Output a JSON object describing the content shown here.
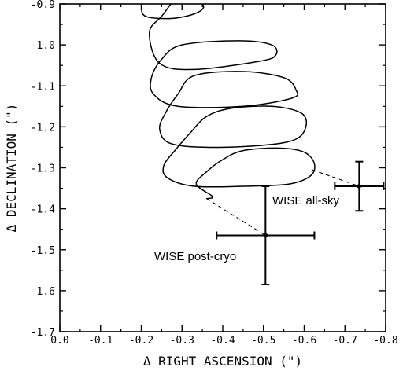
{
  "chart_data": {
    "type": "scatter",
    "xlabel": "Δ RIGHT ASCENSION (\")",
    "ylabel": "Δ DECLINATION (\")",
    "xlim": [
      0.0,
      -0.8
    ],
    "ylim": [
      -1.7,
      -0.9
    ],
    "x_ticks": [
      "0.0",
      "-0.1",
      "-0.2",
      "-0.3",
      "-0.4",
      "-0.5",
      "-0.6",
      "-0.7",
      "-0.8"
    ],
    "y_ticks": [
      "-0.9",
      "-1.0",
      "-1.1",
      "-1.2",
      "-1.3",
      "-1.4",
      "-1.5",
      "-1.6",
      "-1.7"
    ],
    "grid": false,
    "points": [
      {
        "label": "WISE all-sky",
        "x": -0.735,
        "y": -1.345,
        "xerr": 0.06,
        "yerr": 0.06
      },
      {
        "label": "WISE post-cryo",
        "x": -0.505,
        "y": -1.465,
        "xerr": 0.12,
        "yerr": 0.12
      }
    ],
    "parallax_curve": [
      [
        -0.2,
        -0.9
      ],
      [
        -0.21,
        -0.93
      ],
      [
        -0.28,
        -0.935
      ],
      [
        -0.34,
        -0.92
      ],
      [
        -0.35,
        -0.9
      ],
      [
        -0.3,
        -0.875
      ],
      [
        -0.25,
        -0.93
      ],
      [
        -0.22,
        -0.97
      ],
      [
        -0.245,
        -1.045
      ],
      [
        -0.33,
        -1.06
      ],
      [
        -0.49,
        -1.04
      ],
      [
        -0.53,
        -1.025
      ],
      [
        -0.52,
        -1.0
      ],
      [
        -0.44,
        -0.99
      ],
      [
        -0.3,
        -1.0
      ],
      [
        -0.25,
        -1.035
      ],
      [
        -0.225,
        -1.08
      ],
      [
        -0.23,
        -1.12
      ],
      [
        -0.29,
        -1.15
      ],
      [
        -0.45,
        -1.15
      ],
      [
        -0.57,
        -1.13
      ],
      [
        -0.58,
        -1.11
      ],
      [
        -0.55,
        -1.08
      ],
      [
        -0.45,
        -1.065
      ],
      [
        -0.33,
        -1.075
      ],
      [
        -0.29,
        -1.12
      ],
      [
        -0.26,
        -1.165
      ],
      [
        -0.245,
        -1.205
      ],
      [
        -0.27,
        -1.24
      ],
      [
        -0.36,
        -1.25
      ],
      [
        -0.5,
        -1.245
      ],
      [
        -0.58,
        -1.23
      ],
      [
        -0.605,
        -1.195
      ],
      [
        -0.59,
        -1.165
      ],
      [
        -0.52,
        -1.15
      ],
      [
        -0.42,
        -1.155
      ],
      [
        -0.36,
        -1.175
      ],
      [
        -0.32,
        -1.215
      ],
      [
        -0.285,
        -1.255
      ],
      [
        -0.255,
        -1.295
      ],
      [
        -0.265,
        -1.325
      ],
      [
        -0.33,
        -1.345
      ],
      [
        -0.45,
        -1.345
      ],
      [
        -0.56,
        -1.34
      ],
      [
        -0.615,
        -1.32
      ],
      [
        -0.625,
        -1.29
      ],
      [
        -0.6,
        -1.262
      ],
      [
        -0.54,
        -1.252
      ],
      [
        -0.45,
        -1.258
      ],
      [
        -0.4,
        -1.28
      ],
      [
        -0.36,
        -1.31
      ],
      [
        -0.335,
        -1.34
      ],
      [
        -0.375,
        -1.37
      ],
      [
        -0.36,
        -1.375
      ]
    ],
    "links": [
      {
        "from": [
          -0.62,
          -1.305
        ],
        "to": [
          -0.735,
          -1.345
        ]
      },
      {
        "from": [
          -0.36,
          -1.375
        ],
        "to": [
          -0.505,
          -1.465
        ]
      }
    ]
  }
}
